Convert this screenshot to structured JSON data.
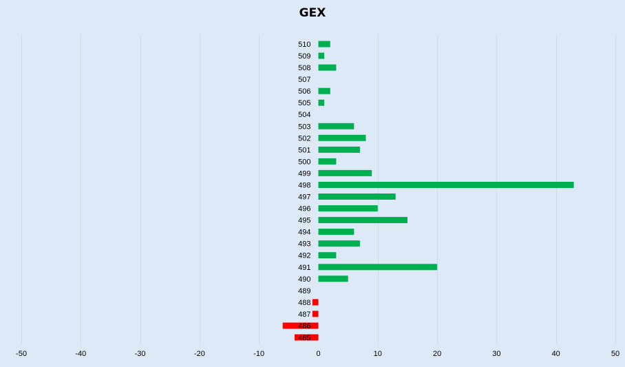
{
  "chart_data": {
    "type": "bar",
    "orientation": "horizontal",
    "title": "GEX",
    "xlabel": "",
    "ylabel": "",
    "xlim": [
      -50,
      50
    ],
    "x_ticks": [
      -50,
      -40,
      -30,
      -20,
      -10,
      0,
      10,
      20,
      30,
      40,
      50
    ],
    "grid": "vertical",
    "legend": "none",
    "categories": [
      "510",
      "509",
      "508",
      "507",
      "506",
      "505",
      "504",
      "503",
      "502",
      "501",
      "500",
      "499",
      "498",
      "497",
      "496",
      "495",
      "494",
      "493",
      "492",
      "491",
      "490",
      "489",
      "488",
      "487",
      "486",
      "485"
    ],
    "values": [
      2,
      1,
      3,
      0,
      2,
      1,
      0,
      6,
      8,
      7,
      3,
      9,
      43,
      13,
      10,
      15,
      6,
      7,
      3,
      20,
      5,
      0,
      -1,
      -1,
      -6,
      -4
    ],
    "colors": {
      "positive": "#00b050",
      "negative": "#ff0000",
      "background": "#dde9f6",
      "grid": "#cfd8e3"
    }
  }
}
